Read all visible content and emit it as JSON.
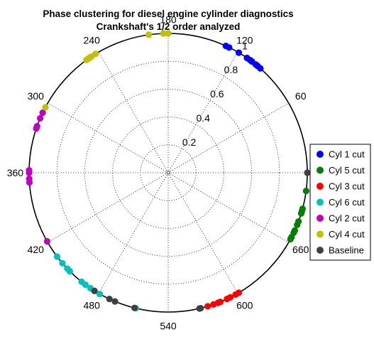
{
  "chart_data": {
    "type": "scatter",
    "subtype": "polar",
    "title": "Phase clustering for diesel engine cylinder diagnostics",
    "subtitle": "Crankshaft's 1/2 order analyzed",
    "angle_unit": "degrees",
    "angle_ticks": [
      {
        "value": 60,
        "label": "60"
      },
      {
        "value": 120,
        "label": "120"
      },
      {
        "value": 180,
        "label": "180"
      },
      {
        "value": 240,
        "label": "240"
      },
      {
        "value": 300,
        "label": "300"
      },
      {
        "value": 360,
        "label": "360"
      },
      {
        "value": 420,
        "label": "420"
      },
      {
        "value": 480,
        "label": "480"
      },
      {
        "value": 540,
        "label": "540"
      },
      {
        "value": 600,
        "label": "600"
      },
      {
        "value": 660,
        "label": "660"
      }
    ],
    "radius_ticks": [
      "0.2",
      "0.4",
      "0.6",
      "0.8",
      "1"
    ],
    "radius_range": [
      0,
      1
    ],
    "grid": true,
    "legend_position": "right",
    "series": [
      {
        "name": "Cyl 1 cut",
        "color": "#0000ff",
        "r": 1.0,
        "angles": [
          97,
          100,
          102,
          106,
          108,
          111,
          119,
          128,
          131
        ]
      },
      {
        "name": "Cyl 5 cut",
        "color": "#008000",
        "r": 1.0,
        "angles": [
          705,
          690,
          688,
          686,
          679,
          676,
          671,
          669,
          665,
          663
        ]
      },
      {
        "name": "Cyl 3 cut",
        "color": "#ff0000",
        "r": 1.0,
        "angles": [
          573,
          578,
          582,
          584,
          590,
          593,
          598,
          601
        ]
      },
      {
        "name": "Cyl 6 cut",
        "color": "#00c0c0",
        "r": 1.0,
        "angles": [
          434,
          441,
          447,
          450,
          463,
          467,
          472,
          476,
          481,
          513
        ]
      },
      {
        "name": "Cyl 2 cut",
        "color": "#c000c0",
        "r": 1.0,
        "angles": [
          309,
          314,
          321,
          323,
          358,
          360,
          365,
          368,
          419
        ]
      },
      {
        "name": "Cyl 4 cut",
        "color": "#c0c000",
        "r": 1.0,
        "angles": [
          180,
          184,
          196,
          243,
          247,
          249,
          251,
          252,
          304
        ]
      },
      {
        "name": "Baseline",
        "color": "#404040",
        "r": 1.0,
        "angles": [
          720,
          476,
          490,
          495,
          512,
          566,
          567
        ]
      }
    ]
  }
}
